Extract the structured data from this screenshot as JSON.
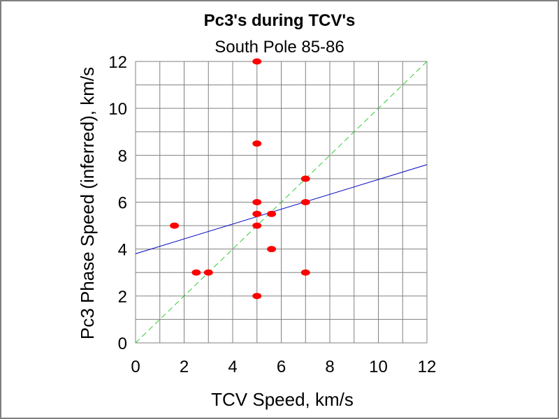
{
  "chart_data": {
    "type": "scatter",
    "title": "Pc3's during TCV's",
    "subtitle": "South Pole 85-86",
    "xlabel": "TCV Speed, km/s",
    "ylabel": "Pc3 Phase Speed (inferred), km/s",
    "xlim": [
      0,
      12
    ],
    "ylim": [
      0,
      12
    ],
    "xticks": [
      "0",
      "2",
      "4",
      "6",
      "8",
      "10",
      "12"
    ],
    "yticks": [
      "0",
      "2",
      "4",
      "6",
      "8",
      "10",
      "12"
    ],
    "grid": true,
    "series": [
      {
        "points": [
          {
            "x": 5,
            "y": 12
          },
          {
            "x": 5,
            "y": 8.5
          },
          {
            "x": 7,
            "y": 7
          },
          {
            "x": 5,
            "y": 6
          },
          {
            "x": 7,
            "y": 6
          },
          {
            "x": 5,
            "y": 5.5
          },
          {
            "x": 5.6,
            "y": 5.5
          },
          {
            "x": 1.6,
            "y": 5
          },
          {
            "x": 5,
            "y": 5
          },
          {
            "x": 5.6,
            "y": 4
          },
          {
            "x": 2.5,
            "y": 3
          },
          {
            "x": 3,
            "y": 3
          },
          {
            "x": 7,
            "y": 3
          },
          {
            "x": 5,
            "y": 2
          }
        ]
      }
    ],
    "lines": [
      {
        "type": "regression-fit",
        "style": "solid",
        "x": [
          0,
          12
        ],
        "y": [
          3.8,
          7.6
        ]
      },
      {
        "type": "identity",
        "style": "dashed",
        "x": [
          0,
          12
        ],
        "y": [
          0,
          12
        ]
      }
    ],
    "colors": {
      "points": "#ff0000",
      "fit_line": "#0000c0",
      "identity_line": "#33cc33",
      "grid": "#808080",
      "frame_border": "#808080"
    }
  }
}
